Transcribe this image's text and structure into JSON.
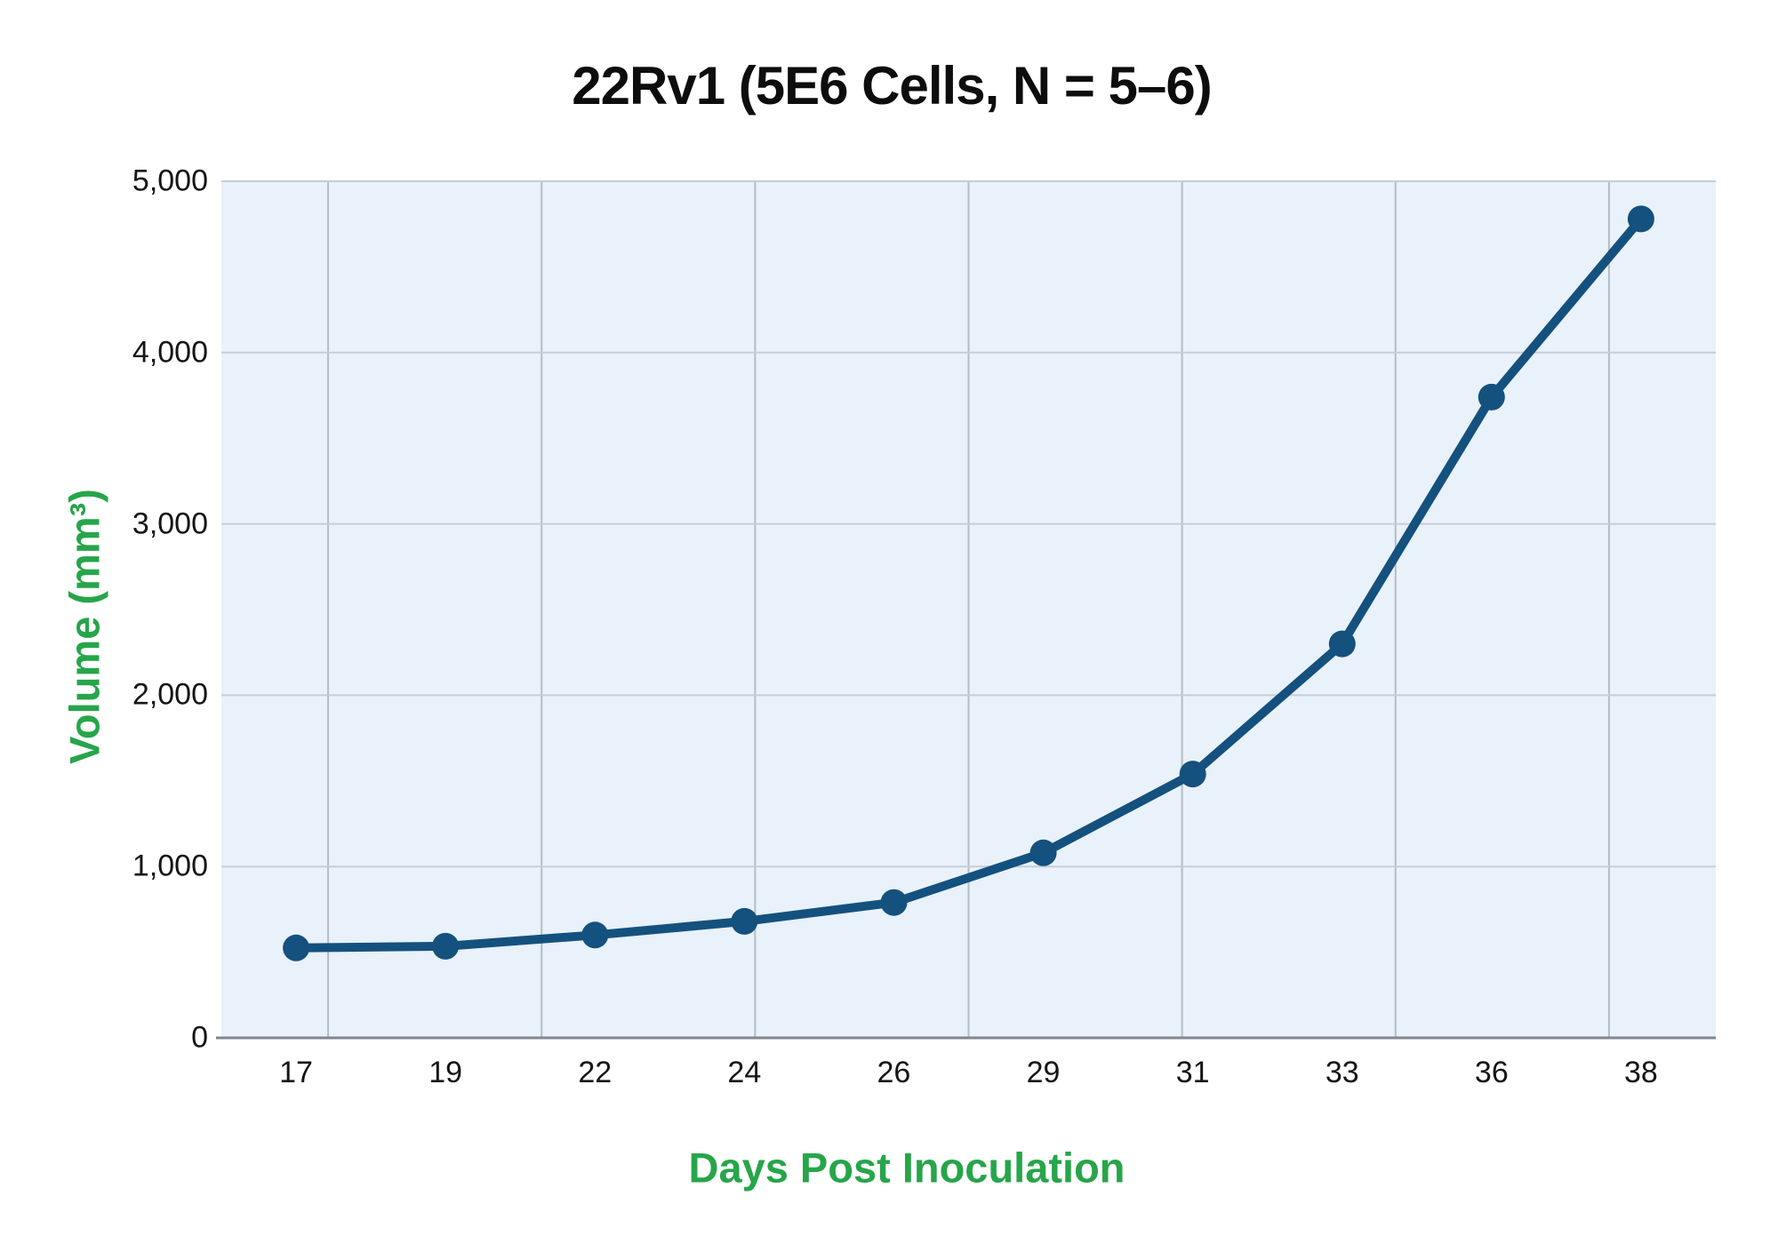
{
  "title": "22Rv1 (5E6 Cells, N = 5–6)",
  "x_axis": {
    "title": "Days Post Inoculation",
    "tick_labels": [
      "17",
      "19",
      "22",
      "24",
      "26",
      "29",
      "31",
      "33",
      "36",
      "38"
    ]
  },
  "y_axis": {
    "title": "Volume (mm³)",
    "tick_labels": [
      "0",
      "1,000",
      "2,000",
      "3,000",
      "4,000",
      "5,000"
    ]
  },
  "colors": {
    "line": "#14517e",
    "marker": "#14517e",
    "plot_bg": "#e9f1fa",
    "grid_horizontal": "#c7cdd6",
    "grid_vertical": "#b5bcc2",
    "axis_line": "#80868d",
    "axis_title_green": "#27a54a",
    "tick_text": "#151515",
    "title_text": "#0d0d0d"
  },
  "chart_data": {
    "type": "line",
    "title": "22Rv1 (5E6 Cells, N = 5–6)",
    "xlabel": "Days Post Inoculation",
    "ylabel": "Volume (mm³)",
    "categories": [
      17,
      19,
      22,
      24,
      26,
      29,
      31,
      33,
      36,
      38
    ],
    "values": [
      525,
      535,
      600,
      680,
      790,
      1080,
      1540,
      2300,
      3740,
      4780
    ],
    "ylim": [
      0,
      5000
    ],
    "y_tick_step": 1000,
    "grid": true,
    "legend": false,
    "marker": "circle",
    "x_axis_type": "categorical"
  }
}
